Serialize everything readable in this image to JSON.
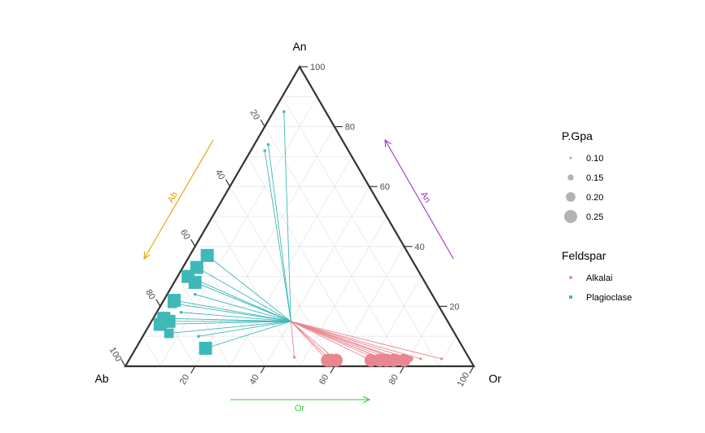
{
  "chart_data": {
    "type": "scatter",
    "subtype": "ternary",
    "axes": {
      "An": {
        "label": "An",
        "ticks": [
          "100",
          "80",
          "60",
          "40",
          "20"
        ],
        "arrow_label": "An",
        "arrow_color": "#9933cc"
      },
      "Ab": {
        "label": "Ab",
        "ticks": [
          "20",
          "40",
          "60",
          "80",
          "100"
        ],
        "arrow_label": "Ab",
        "arrow_color": "#e69f00"
      },
      "Or": {
        "label": "Or",
        "ticks": [
          "20",
          "40",
          "60",
          "80",
          "100"
        ],
        "arrow_label": "Or",
        "arrow_color": "#33cc33"
      }
    },
    "grid": true,
    "center": {
      "Ab": 45,
      "An": 15,
      "Or": 40
    },
    "series": [
      {
        "name": "Alkalai",
        "color": "#e8878f",
        "marker": "circle",
        "points": [
          {
            "Ab": 41,
            "An": 2,
            "Or": 57,
            "P": 0.25
          },
          {
            "Ab": 40,
            "An": 2,
            "Or": 58,
            "P": 0.25
          },
          {
            "Ab": 38.5,
            "An": 2,
            "Or": 59.5,
            "P": 0.25
          },
          {
            "Ab": 28.5,
            "An": 2,
            "Or": 69.5,
            "P": 0.25
          },
          {
            "Ab": 26,
            "An": 2,
            "Or": 72,
            "P": 0.25
          },
          {
            "Ab": 24,
            "An": 2,
            "Or": 74,
            "P": 0.25
          },
          {
            "Ab": 22,
            "An": 2,
            "Or": 76,
            "P": 0.25
          },
          {
            "Ab": 19,
            "An": 2,
            "Or": 79,
            "P": 0.25
          },
          {
            "Ab": 25,
            "An": 2.5,
            "Or": 72.5,
            "P": 0.2
          },
          {
            "Ab": 21,
            "An": 2.5,
            "Or": 76.5,
            "P": 0.2
          },
          {
            "Ab": 17,
            "An": 2.5,
            "Or": 80.5,
            "P": 0.15
          },
          {
            "Ab": 14,
            "An": 2.5,
            "Or": 83.5,
            "P": 0.1
          },
          {
            "Ab": 8,
            "An": 2.5,
            "Or": 89.5,
            "P": 0.1
          },
          {
            "Ab": 50,
            "An": 3,
            "Or": 47,
            "P": 0.1
          }
        ]
      },
      {
        "name": "Plagioclase",
        "color": "#3fb8b8",
        "marker": "square",
        "points": [
          {
            "Ab": 12,
            "An": 85,
            "Or": 3,
            "P": 0.1
          },
          {
            "Ab": 22,
            "An": 74,
            "Or": 4,
            "P": 0.1
          },
          {
            "Ab": 24,
            "An": 72,
            "Or": 4,
            "P": 0.1
          },
          {
            "Ab": 58,
            "An": 37,
            "Or": 5,
            "P": 0.25
          },
          {
            "Ab": 63,
            "An": 33,
            "Or": 4,
            "P": 0.25
          },
          {
            "Ab": 67,
            "An": 30,
            "Or": 3,
            "P": 0.25
          },
          {
            "Ab": 66,
            "An": 28,
            "Or": 6,
            "P": 0.2
          },
          {
            "Ab": 66,
            "An": 28,
            "Or": 6,
            "P": 0.25
          },
          {
            "Ab": 75,
            "An": 22,
            "Or": 3,
            "P": 0.25
          },
          {
            "Ab": 76,
            "An": 21,
            "Or": 3,
            "P": 0.2
          },
          {
            "Ab": 81,
            "An": 16,
            "Or": 3,
            "P": 0.25
          },
          {
            "Ab": 80,
            "An": 15,
            "Or": 5,
            "P": 0.25
          },
          {
            "Ab": 83,
            "An": 14,
            "Or": 3,
            "P": 0.25
          },
          {
            "Ab": 75,
            "An": 18,
            "Or": 7,
            "P": 0.1
          },
          {
            "Ab": 74,
            "An": 6,
            "Or": 20,
            "P": 0.25
          },
          {
            "Ab": 82,
            "An": 11,
            "Or": 7,
            "P": 0.2
          },
          {
            "Ab": 74,
            "An": 10,
            "Or": 16,
            "P": 0.1
          },
          {
            "Ab": 68,
            "An": 24,
            "Or": 8,
            "P": 0.1
          }
        ]
      }
    ],
    "legend": {
      "placement": "right",
      "size_title": "P.Gpa",
      "size_items": [
        "0.10",
        "0.15",
        "0.20",
        "0.25"
      ],
      "color_title": "Feldspar",
      "color_items": [
        "Alkalai",
        "Plagioclase"
      ]
    }
  }
}
